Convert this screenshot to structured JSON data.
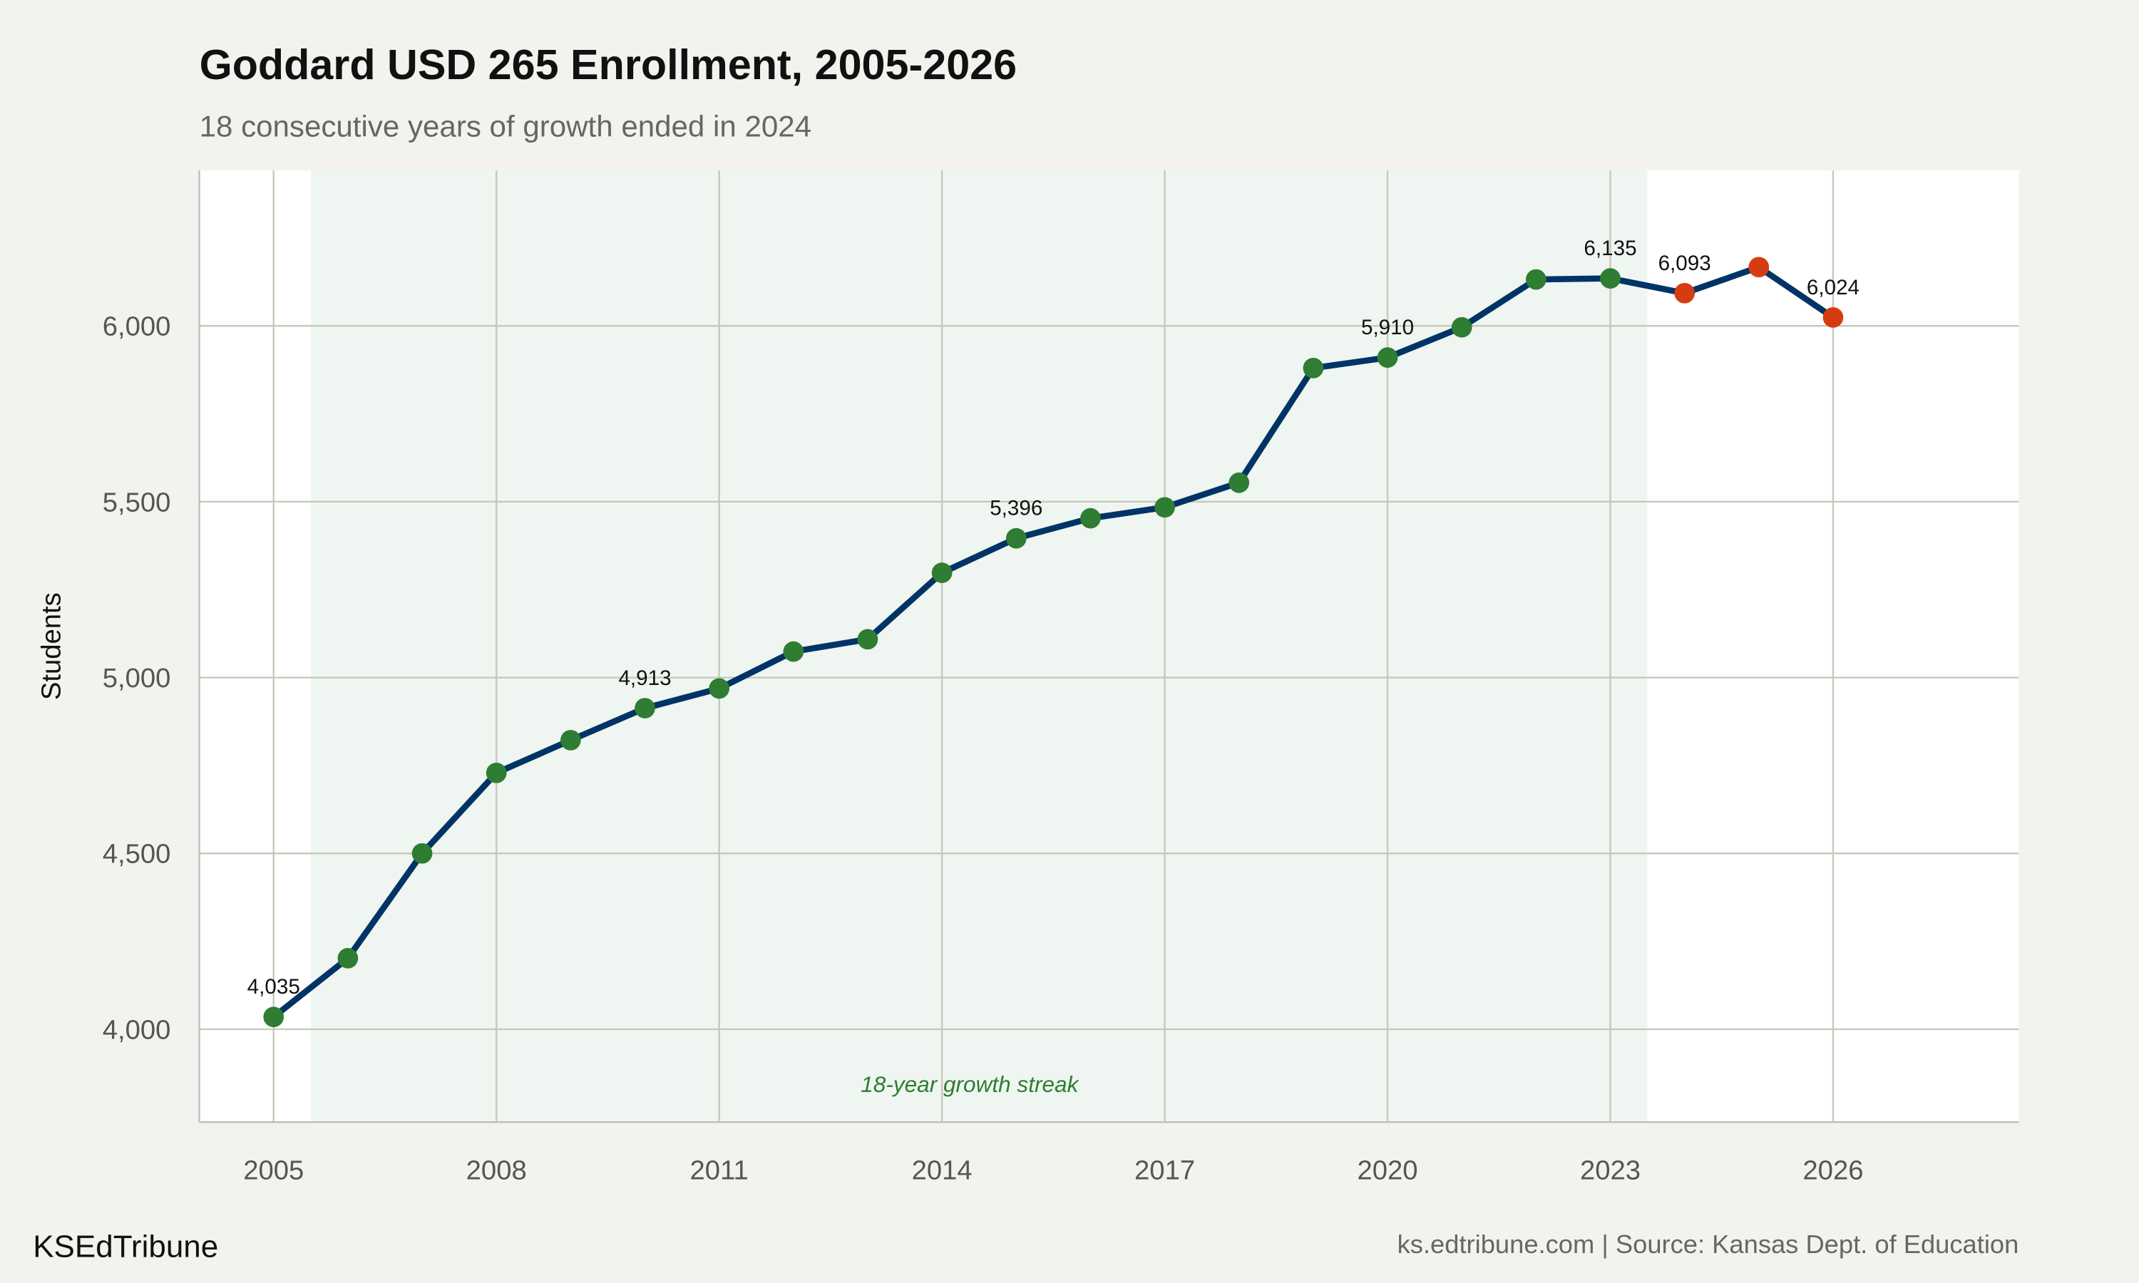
{
  "chart_data": {
    "type": "line",
    "title": "Goddard USD 265 Enrollment, 2005-2026",
    "subtitle": "18 consecutive years of growth ended in 2024",
    "xlabel": "",
    "ylabel": "Students",
    "x": [
      2005,
      2006,
      2007,
      2008,
      2009,
      2010,
      2011,
      2012,
      2013,
      2014,
      2015,
      2016,
      2017,
      2018,
      2019,
      2020,
      2021,
      2022,
      2023,
      2024,
      2025,
      2026
    ],
    "values": [
      4035,
      4202,
      4500,
      4729,
      4822,
      4913,
      4969,
      5074,
      5109,
      5298,
      5396,
      5453,
      5484,
      5554,
      5880,
      5910,
      5996,
      6132,
      6135,
      6093,
      6167,
      6024
    ],
    "point_status": [
      "growth",
      "growth",
      "growth",
      "growth",
      "growth",
      "growth",
      "growth",
      "growth",
      "growth",
      "growth",
      "growth",
      "growth",
      "growth",
      "growth",
      "growth",
      "growth",
      "growth",
      "growth",
      "growth",
      "decline",
      "decline",
      "decline"
    ],
    "labeled_points": [
      {
        "x": 2005,
        "label": "4,035"
      },
      {
        "x": 2010,
        "label": "4,913"
      },
      {
        "x": 2015,
        "label": "5,396"
      },
      {
        "x": 2020,
        "label": "5,910"
      },
      {
        "x": 2023,
        "label": "6,135"
      },
      {
        "x": 2024,
        "label": "6,093"
      },
      {
        "x": 2026,
        "label": "6,024"
      }
    ],
    "xticks": [
      2005,
      2008,
      2011,
      2014,
      2017,
      2020,
      2023,
      2026
    ],
    "xtick_labels": [
      "2005",
      "2008",
      "2011",
      "2014",
      "2017",
      "2020",
      "2023",
      "2026"
    ],
    "yticks": [
      4000,
      4500,
      5000,
      5500,
      6000
    ],
    "ytick_labels": [
      "4,000",
      "4,500",
      "5,000",
      "5,500",
      "6,000"
    ],
    "xlim": [
      2004.0,
      2028.5
    ],
    "ylim": [
      3736,
      6442
    ],
    "grid": true,
    "shaded_region": {
      "from": 2005.5,
      "to": 2023.5,
      "label": "18-year growth streak"
    },
    "colors": {
      "line": "#003366",
      "growth": "#2e7d32",
      "decline": "#d63c12",
      "shade": "#eff5f0",
      "background": "#f4f2ee",
      "panel": "#ffffff",
      "grid": "#c8c6b8"
    }
  },
  "footer": {
    "brand": "KSEdTribune",
    "caption": "ks.edtribune.com | Source: Kansas Dept. of Education"
  }
}
